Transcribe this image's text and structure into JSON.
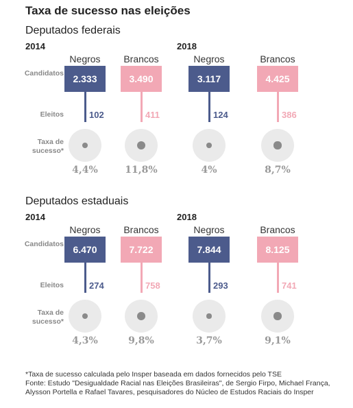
{
  "title": "Taxa de sucesso nas eleições",
  "row_labels": {
    "candidatos": "Candidatos",
    "eleitos": "Eleitos",
    "taxa_line1": "Taxa de",
    "taxa_line2": "sucesso*"
  },
  "group_labels": {
    "negros": "Negros",
    "brancos": "Brancos"
  },
  "colors": {
    "negros": "#4c5b8c",
    "brancos": "#f2a8b5",
    "circle": "#eaeaea",
    "dot": "#8a8a8a"
  },
  "chart_data": [
    {
      "type": "table",
      "title": "Deputados federais",
      "years": [
        {
          "year": "2014",
          "negros": {
            "candidatos": "2.333",
            "eleitos": "102",
            "taxa": "4,4%",
            "taxa_value": 4.4
          },
          "brancos": {
            "candidatos": "3.490",
            "eleitos": "411",
            "taxa": "11,8%",
            "taxa_value": 11.8
          }
        },
        {
          "year": "2018",
          "negros": {
            "candidatos": "3.117",
            "eleitos": "124",
            "taxa": "4%",
            "taxa_value": 4.0
          },
          "brancos": {
            "candidatos": "4.425",
            "eleitos": "386",
            "taxa": "8,7%",
            "taxa_value": 8.7
          }
        }
      ]
    },
    {
      "type": "table",
      "title": "Deputados estaduais",
      "years": [
        {
          "year": "2014",
          "negros": {
            "candidatos": "6.470",
            "eleitos": "274",
            "taxa": "4,3%",
            "taxa_value": 4.3
          },
          "brancos": {
            "candidatos": "7.722",
            "eleitos": "758",
            "taxa": "9,8%",
            "taxa_value": 9.8
          }
        },
        {
          "year": "2018",
          "negros": {
            "candidatos": "7.844",
            "eleitos": "293",
            "taxa": "3,7%",
            "taxa_value": 3.7
          },
          "brancos": {
            "candidatos": "8.125",
            "eleitos": "741",
            "taxa": "9,1%",
            "taxa_value": 9.1
          }
        }
      ]
    }
  ],
  "footnote": {
    "line1": "*Taxa de sucesso calculada pelo Insper baseada em dados fornecidos pelo TSE",
    "line2": "Fonte: Estudo \"Desigualdade Racial nas Eleições Brasileiras\", de Sergio Firpo, Michael França,",
    "line3": "Alysson Portella e Rafael Tavares, pesquisadores do Núcleo de Estudos Raciais do Insper"
  }
}
